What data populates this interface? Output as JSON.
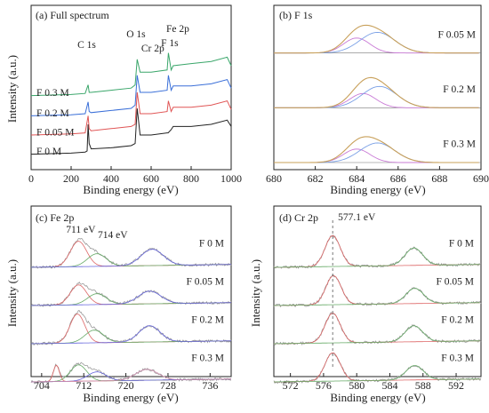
{
  "chart_data": [
    {
      "id": "a",
      "type": "line",
      "title": "(a) Full spectrum",
      "xlabel": "Binding energy (eV)",
      "ylabel": "Intensity (a.u.)",
      "xlim": [
        0,
        1000
      ],
      "xticks": [
        0,
        200,
        400,
        600,
        800,
        1000
      ],
      "yticks_shown": false,
      "series": [
        {
          "name": "F 0 M",
          "color": "#222222",
          "offset": 0.0,
          "x": [
            0,
            100,
            200,
            270,
            280,
            285,
            290,
            300,
            400,
            500,
            520,
            530,
            545,
            600,
            680,
            685,
            700,
            710,
            800,
            900,
            980,
            1000
          ],
          "y": [
            0.02,
            0.025,
            0.03,
            0.04,
            0.05,
            0.3,
            0.12,
            0.07,
            0.08,
            0.1,
            0.12,
            0.45,
            0.2,
            0.2,
            0.22,
            0.22,
            0.25,
            0.28,
            0.28,
            0.3,
            0.34,
            0.28
          ]
        },
        {
          "name": "F 0.05 M",
          "color": "#e05555",
          "offset": 0.18,
          "x": [
            0,
            100,
            200,
            270,
            285,
            290,
            300,
            400,
            500,
            520,
            530,
            545,
            600,
            680,
            686,
            700,
            710,
            800,
            900,
            980,
            1000
          ],
          "y": [
            0.02,
            0.025,
            0.03,
            0.04,
            0.2,
            0.08,
            0.06,
            0.08,
            0.1,
            0.12,
            0.42,
            0.22,
            0.22,
            0.24,
            0.34,
            0.24,
            0.28,
            0.28,
            0.3,
            0.34,
            0.26
          ]
        },
        {
          "name": "F 0.2 M",
          "color": "#3a6fd8",
          "offset": 0.36,
          "x": [
            0,
            100,
            200,
            270,
            285,
            290,
            300,
            400,
            500,
            520,
            530,
            545,
            600,
            680,
            686,
            700,
            710,
            800,
            900,
            980,
            1000
          ],
          "y": [
            0.02,
            0.025,
            0.03,
            0.04,
            0.15,
            0.06,
            0.05,
            0.07,
            0.09,
            0.12,
            0.4,
            0.24,
            0.24,
            0.26,
            0.4,
            0.26,
            0.3,
            0.3,
            0.32,
            0.36,
            0.28
          ]
        },
        {
          "name": "F 0.3 M",
          "color": "#3aa66a",
          "offset": 0.55,
          "x": [
            0,
            100,
            200,
            270,
            285,
            290,
            300,
            400,
            500,
            520,
            530,
            545,
            600,
            680,
            686,
            700,
            710,
            800,
            900,
            980,
            1000
          ],
          "y": [
            0.02,
            0.025,
            0.03,
            0.04,
            0.12,
            0.05,
            0.05,
            0.07,
            0.09,
            0.12,
            0.36,
            0.24,
            0.24,
            0.26,
            0.42,
            0.26,
            0.3,
            0.32,
            0.34,
            0.38,
            0.3
          ]
        }
      ],
      "annotations": [
        {
          "text": "C 1s",
          "x": 285
        },
        {
          "text": "O 1s",
          "x": 530
        },
        {
          "text": "Cr 2p",
          "x": 577
        },
        {
          "text": "F 1s",
          "x": 685
        },
        {
          "text": "Fe 2p",
          "x": 711
        }
      ]
    },
    {
      "id": "b",
      "type": "line",
      "title": "(b) F 1s",
      "xlabel": "Binding energy (eV)",
      "ylabel": "",
      "xlim": [
        680,
        690
      ],
      "xticks": [
        680,
        682,
        684,
        686,
        688,
        690
      ],
      "yticks_shown": false,
      "stacks": [
        {
          "name": "F 0.05 M",
          "peak_center": 684.6,
          "peak_height": 0.75,
          "components": [
            {
              "center": 684.0,
              "height": 0.42,
              "width": 0.9,
              "color": "#c97bd6"
            },
            {
              "center": 685.0,
              "height": 0.58,
              "width": 1.2,
              "color": "#7aa0e6"
            }
          ]
        },
        {
          "name": "F 0.2 M",
          "peak_center": 684.8,
          "peak_height": 0.8,
          "components": [
            {
              "center": 684.3,
              "height": 0.4,
              "width": 0.9,
              "color": "#c97bd6"
            },
            {
              "center": 685.1,
              "height": 0.6,
              "width": 1.2,
              "color": "#7aa0e6"
            }
          ]
        },
        {
          "name": "F 0.3 M",
          "peak_center": 684.6,
          "peak_height": 0.7,
          "components": [
            {
              "center": 684.0,
              "height": 0.38,
              "width": 0.9,
              "color": "#c97bd6"
            },
            {
              "center": 685.0,
              "height": 0.55,
              "width": 1.2,
              "color": "#7aa0e6"
            }
          ]
        }
      ]
    },
    {
      "id": "c",
      "type": "line",
      "title": "(c) Fe 2p",
      "xlabel": "Binding energy (eV)",
      "ylabel": "Intensity (a.u.)",
      "xlim": [
        702,
        740
      ],
      "xticks": [
        704,
        712,
        720,
        728,
        736
      ],
      "yticks_shown": false,
      "annotations": [
        {
          "text": "711 eV",
          "x": 711
        },
        {
          "text": "714 eV",
          "x": 714
        }
      ],
      "stacks": [
        {
          "name": "F 0 M",
          "peaks": [
            {
              "center": 711.0,
              "height": 0.7,
              "width": 2.2
            },
            {
              "center": 714.5,
              "height": 0.35,
              "width": 2.5
            },
            {
              "center": 725.0,
              "height": 0.45,
              "width": 3.0
            }
          ]
        },
        {
          "name": "F 0.05 M",
          "peaks": [
            {
              "center": 711.0,
              "height": 0.55,
              "width": 2.2
            },
            {
              "center": 714.5,
              "height": 0.3,
              "width": 2.5
            },
            {
              "center": 724.5,
              "height": 0.35,
              "width": 3.0
            }
          ]
        },
        {
          "name": "F 0.2 M",
          "peaks": [
            {
              "center": 710.8,
              "height": 0.8,
              "width": 2.0
            },
            {
              "center": 714.0,
              "height": 0.35,
              "width": 2.5
            },
            {
              "center": 724.5,
              "height": 0.45,
              "width": 2.8
            }
          ]
        },
        {
          "name": "F 0.3 M",
          "peaks": [
            {
              "center": 706.8,
              "height": 0.45,
              "width": 0.8
            },
            {
              "center": 711.0,
              "height": 0.45,
              "width": 2.2
            },
            {
              "center": 714.5,
              "height": 0.25,
              "width": 2.5
            },
            {
              "center": 724.0,
              "height": 0.3,
              "width": 3.0
            }
          ]
        }
      ]
    },
    {
      "id": "d",
      "type": "line",
      "title": "(d) Cr 2p",
      "xlabel": "Binding energy (eV)",
      "ylabel": "Intensity (a.u.)",
      "xlim": [
        570,
        595
      ],
      "xticks": [
        572,
        576,
        580,
        584,
        588,
        592
      ],
      "yticks_shown": false,
      "annotations": [
        {
          "text": "577.1 eV",
          "x": 577.1
        }
      ],
      "stacks": [
        {
          "name": "F 0 M",
          "peaks": [
            {
              "center": 577.1,
              "height": 0.85,
              "width": 1.3
            },
            {
              "center": 586.9,
              "height": 0.48,
              "width": 1.5
            }
          ]
        },
        {
          "name": "F 0.05 M",
          "peaks": [
            {
              "center": 577.2,
              "height": 0.8,
              "width": 1.3
            },
            {
              "center": 587.0,
              "height": 0.42,
              "width": 1.5
            }
          ]
        },
        {
          "name": "F 0.2 M",
          "peaks": [
            {
              "center": 577.1,
              "height": 0.82,
              "width": 1.3
            },
            {
              "center": 586.9,
              "height": 0.44,
              "width": 1.5
            }
          ]
        },
        {
          "name": "F 0.3 M",
          "peaks": [
            {
              "center": 577.1,
              "height": 0.78,
              "width": 1.3
            },
            {
              "center": 587.0,
              "height": 0.4,
              "width": 1.5
            }
          ]
        }
      ]
    }
  ]
}
